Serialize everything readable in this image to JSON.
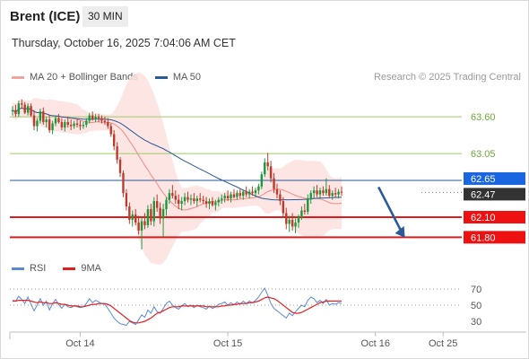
{
  "header": {
    "instrument": "Brent (ICE)",
    "interval": "30 MIN",
    "datetime": "Thursday, October 16, 2025 7:04:06 AM CET"
  },
  "price_legend": [
    {
      "label": "MA 20 + Bollinger Bands",
      "color": "#f4a4a0"
    },
    {
      "label": "MA 50",
      "color": "#2a5a9a"
    }
  ],
  "rsi_legend": [
    {
      "label": "RSI",
      "color": "#5b8ad8"
    },
    {
      "label": "9MA",
      "color": "#e02020"
    }
  ],
  "copyright": "Research © 2025 Trading Central",
  "x_axis": {
    "labels": [
      {
        "label": "Oct 14",
        "t": 22
      },
      {
        "label": "Oct 15",
        "t": 70
      },
      {
        "label": "Oct 16",
        "t": 118
      },
      {
        "label": "Oct 25",
        "t": 140
      }
    ]
  },
  "chart_data": [
    {
      "type": "candlestick",
      "yrange": [
        61.55,
        63.95
      ],
      "levels": [
        {
          "label": "63.60",
          "value": 63.6,
          "kind": "resistance"
        },
        {
          "label": "63.05",
          "value": 63.05,
          "kind": "resistance"
        },
        {
          "label": "62.65",
          "value": 62.65,
          "kind": "pivot"
        },
        {
          "label": "62.47",
          "value": 62.47,
          "kind": "last"
        },
        {
          "label": "62.10",
          "value": 62.1,
          "kind": "support"
        },
        {
          "label": "61.80",
          "value": 61.8,
          "kind": "support"
        }
      ],
      "colors": {
        "up": "#1b9a3c",
        "down": "#c0392b",
        "band": "#fde0df",
        "ma20": "#f08a84",
        "ma50": "#2a5a9a",
        "resistance": "#9ccc65",
        "pivot": "#2a5a9a",
        "support": "#e01b1b",
        "last": "#333333"
      },
      "projection": {
        "from": [
          119,
          62.55
        ],
        "to": [
          127,
          61.82
        ]
      },
      "candles": [
        [
          63.68,
          63.76,
          63.62,
          63.7
        ],
        [
          63.7,
          63.78,
          63.6,
          63.64
        ],
        [
          63.64,
          63.84,
          63.6,
          63.8
        ],
        [
          63.8,
          63.86,
          63.72,
          63.78
        ],
        [
          63.78,
          63.82,
          63.64,
          63.66
        ],
        [
          63.66,
          63.8,
          63.62,
          63.76
        ],
        [
          63.76,
          63.8,
          63.6,
          63.62
        ],
        [
          63.62,
          63.7,
          63.4,
          63.46
        ],
        [
          63.46,
          63.58,
          63.38,
          63.54
        ],
        [
          63.54,
          63.72,
          63.5,
          63.68
        ],
        [
          63.68,
          63.74,
          63.48,
          63.52
        ],
        [
          63.52,
          63.6,
          63.44,
          63.56
        ],
        [
          63.56,
          63.62,
          63.36,
          63.4
        ],
        [
          63.4,
          63.54,
          63.34,
          63.5
        ],
        [
          63.5,
          63.62,
          63.46,
          63.58
        ],
        [
          63.58,
          63.64,
          63.5,
          63.52
        ],
        [
          63.52,
          63.58,
          63.4,
          63.44
        ],
        [
          63.44,
          63.56,
          63.38,
          63.52
        ],
        [
          63.52,
          63.6,
          63.44,
          63.48
        ],
        [
          63.48,
          63.56,
          63.4,
          63.46
        ],
        [
          63.46,
          63.54,
          63.42,
          63.5
        ],
        [
          63.5,
          63.56,
          63.44,
          63.48
        ],
        [
          63.48,
          63.54,
          63.4,
          63.46
        ],
        [
          63.46,
          63.52,
          63.42,
          63.48
        ],
        [
          63.48,
          63.58,
          63.44,
          63.54
        ],
        [
          63.54,
          63.66,
          63.5,
          63.62
        ],
        [
          63.62,
          63.68,
          63.54,
          63.56
        ],
        [
          63.56,
          63.64,
          63.52,
          63.6
        ],
        [
          63.6,
          63.64,
          63.52,
          63.58
        ],
        [
          63.58,
          63.62,
          63.5,
          63.54
        ],
        [
          63.54,
          63.6,
          63.48,
          63.52
        ],
        [
          63.52,
          63.58,
          63.42,
          63.46
        ],
        [
          63.46,
          63.5,
          63.3,
          63.34
        ],
        [
          63.34,
          63.4,
          63.1,
          63.16
        ],
        [
          63.16,
          63.22,
          62.9,
          62.96
        ],
        [
          62.96,
          63.0,
          62.7,
          62.76
        ],
        [
          62.76,
          62.8,
          62.4,
          62.46
        ],
        [
          62.46,
          62.52,
          62.2,
          62.26
        ],
        [
          62.26,
          62.32,
          62.0,
          62.06
        ],
        [
          62.06,
          62.2,
          61.96,
          62.14
        ],
        [
          62.14,
          62.22,
          61.98,
          62.02
        ],
        [
          62.02,
          62.12,
          61.84,
          61.9
        ],
        [
          61.9,
          62.1,
          61.62,
          62.04
        ],
        [
          62.04,
          62.16,
          61.92,
          61.98
        ],
        [
          61.98,
          62.28,
          61.94,
          62.22
        ],
        [
          62.22,
          62.3,
          61.98,
          62.04
        ],
        [
          62.04,
          62.4,
          61.96,
          62.34
        ],
        [
          62.34,
          62.44,
          62.18,
          62.24
        ],
        [
          62.24,
          62.32,
          62.0,
          62.08
        ],
        [
          62.08,
          62.3,
          61.8,
          62.22
        ],
        [
          62.22,
          62.4,
          62.12,
          62.36
        ],
        [
          62.36,
          62.52,
          62.3,
          62.46
        ],
        [
          62.46,
          62.58,
          62.38,
          62.42
        ],
        [
          62.42,
          62.5,
          62.3,
          62.36
        ],
        [
          62.36,
          62.44,
          62.22,
          62.3
        ],
        [
          62.3,
          62.4,
          62.2,
          62.34
        ],
        [
          62.34,
          62.46,
          62.28,
          62.4
        ],
        [
          62.4,
          62.48,
          62.32,
          62.36
        ],
        [
          62.36,
          62.44,
          62.28,
          62.38
        ],
        [
          62.38,
          62.46,
          62.3,
          62.34
        ],
        [
          62.34,
          62.42,
          62.26,
          62.38
        ],
        [
          62.38,
          62.46,
          62.32,
          62.36
        ],
        [
          62.36,
          62.42,
          62.3,
          62.34
        ],
        [
          62.34,
          62.4,
          62.24,
          62.3
        ],
        [
          62.3,
          62.38,
          62.22,
          62.34
        ],
        [
          62.34,
          62.4,
          62.26,
          62.28
        ],
        [
          62.28,
          62.36,
          62.2,
          62.32
        ],
        [
          62.32,
          62.4,
          62.26,
          62.36
        ],
        [
          62.36,
          62.44,
          62.3,
          62.38
        ],
        [
          62.38,
          62.46,
          62.32,
          62.42
        ],
        [
          62.42,
          62.5,
          62.34,
          62.38
        ],
        [
          62.38,
          62.48,
          62.32,
          62.44
        ],
        [
          62.44,
          62.52,
          62.38,
          62.4
        ],
        [
          62.4,
          62.5,
          62.36,
          62.46
        ],
        [
          62.46,
          62.52,
          62.38,
          62.42
        ],
        [
          62.42,
          62.5,
          62.36,
          62.48
        ],
        [
          62.48,
          62.56,
          62.4,
          62.44
        ],
        [
          62.44,
          62.52,
          62.38,
          62.48
        ],
        [
          62.48,
          62.56,
          62.42,
          62.46
        ],
        [
          62.46,
          62.54,
          62.4,
          62.5
        ],
        [
          62.5,
          62.6,
          62.44,
          62.56
        ],
        [
          62.56,
          62.78,
          62.52,
          62.74
        ],
        [
          62.74,
          62.98,
          62.7,
          62.92
        ],
        [
          62.92,
          63.06,
          62.8,
          62.86
        ],
        [
          62.86,
          62.94,
          62.62,
          62.68
        ],
        [
          62.68,
          62.76,
          62.46,
          62.52
        ],
        [
          62.52,
          62.6,
          62.38,
          62.44
        ],
        [
          62.44,
          62.5,
          62.28,
          62.34
        ],
        [
          62.34,
          62.4,
          62.1,
          62.16
        ],
        [
          62.16,
          62.24,
          61.92,
          62.0
        ],
        [
          62.0,
          62.12,
          61.88,
          62.06
        ],
        [
          62.06,
          62.16,
          61.9,
          61.96
        ],
        [
          61.96,
          62.08,
          61.86,
          62.02
        ],
        [
          62.02,
          62.14,
          61.94,
          62.1
        ],
        [
          62.1,
          62.26,
          62.06,
          62.2
        ],
        [
          62.2,
          62.3,
          62.14,
          62.18
        ],
        [
          62.18,
          62.44,
          62.14,
          62.38
        ],
        [
          62.38,
          62.5,
          62.3,
          62.46
        ],
        [
          62.46,
          62.56,
          62.38,
          62.5
        ],
        [
          62.5,
          62.58,
          62.4,
          62.44
        ],
        [
          62.44,
          62.54,
          62.38,
          62.5
        ],
        [
          62.5,
          62.56,
          62.42,
          62.46
        ],
        [
          62.46,
          62.68,
          62.42,
          62.52
        ],
        [
          62.52,
          62.58,
          62.38,
          62.42
        ],
        [
          62.42,
          62.5,
          62.36,
          62.46
        ],
        [
          62.46,
          62.54,
          62.4,
          62.44
        ],
        [
          62.44,
          62.52,
          62.38,
          62.48
        ],
        [
          62.48,
          62.56,
          62.42,
          62.47
        ]
      ]
    },
    {
      "type": "line",
      "yrange": [
        20,
        80
      ],
      "ticks": [
        {
          "label": "70",
          "value": 70
        },
        {
          "label": "50",
          "value": 50
        },
        {
          "label": "30",
          "value": 30
        }
      ],
      "dotted_levels": [
        70,
        50
      ],
      "series": [
        {
          "name": "RSI",
          "color": "#5b8ad8",
          "values": [
            56,
            55,
            61,
            57,
            52,
            60,
            51,
            43,
            50,
            58,
            50,
            55,
            44,
            52,
            57,
            51,
            46,
            51,
            48,
            47,
            49,
            48,
            47,
            48,
            52,
            58,
            53,
            56,
            54,
            52,
            51,
            46,
            40,
            34,
            30,
            27,
            26,
            25,
            30,
            28,
            26,
            32,
            38,
            35,
            44,
            40,
            48,
            42,
            40,
            46,
            52,
            55,
            50,
            47,
            45,
            49,
            52,
            48,
            50,
            47,
            50,
            48,
            47,
            45,
            49,
            46,
            48,
            51,
            52,
            54,
            50,
            53,
            50,
            54,
            51,
            55,
            52,
            55,
            53,
            56,
            60,
            66,
            71,
            62,
            52,
            46,
            43,
            40,
            37,
            34,
            40,
            37,
            42,
            46,
            50,
            48,
            56,
            60,
            58,
            53,
            56,
            52,
            57,
            50,
            52,
            51,
            53,
            52
          ]
        },
        {
          "name": "9MA",
          "color": "#e02020",
          "values": [
            55,
            55,
            56,
            56,
            56,
            56,
            55,
            54,
            53,
            54,
            53,
            53,
            52,
            52,
            53,
            52,
            51,
            51,
            50,
            49,
            49,
            49,
            48,
            48,
            49,
            50,
            51,
            51,
            52,
            52,
            52,
            51,
            49,
            46,
            43,
            40,
            37,
            34,
            31,
            29,
            28,
            28,
            29,
            30,
            32,
            34,
            37,
            40,
            41,
            43,
            45,
            47,
            48,
            48,
            48,
            49,
            49,
            49,
            49,
            49,
            49,
            49,
            49,
            48,
            48,
            48,
            48,
            48,
            49,
            49,
            50,
            50,
            51,
            51,
            52,
            52,
            52,
            53,
            53,
            54,
            55,
            57,
            59,
            60,
            59,
            58,
            56,
            53,
            50,
            47,
            44,
            41,
            40,
            40,
            41,
            43,
            45,
            47,
            49,
            51,
            53,
            54,
            55,
            55,
            55,
            55,
            55,
            55
          ]
        }
      ]
    }
  ]
}
